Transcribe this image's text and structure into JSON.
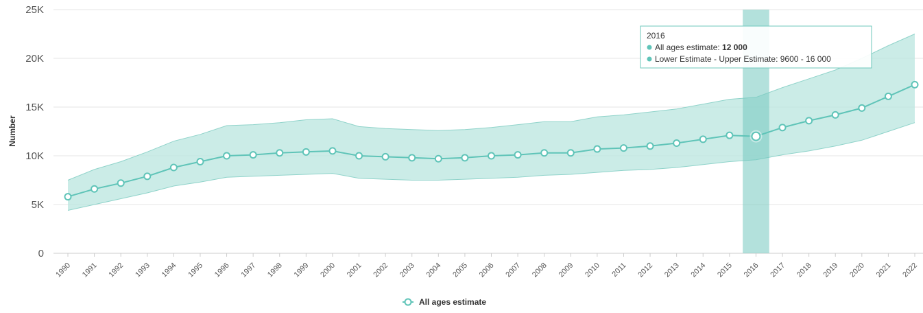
{
  "chart_data": {
    "type": "line",
    "ylabel": "Number",
    "ylim": [
      0,
      25000
    ],
    "y_ticks": [
      {
        "value": 0,
        "label": "0"
      },
      {
        "value": 5000,
        "label": "5K"
      },
      {
        "value": 10000,
        "label": "10K"
      },
      {
        "value": 15000,
        "label": "15K"
      },
      {
        "value": 20000,
        "label": "20K"
      },
      {
        "value": 25000,
        "label": "25K"
      }
    ],
    "categories": [
      "1990",
      "1991",
      "1992",
      "1993",
      "1994",
      "1995",
      "1996",
      "1997",
      "1998",
      "1999",
      "2000",
      "2001",
      "2002",
      "2003",
      "2004",
      "2005",
      "2006",
      "2007",
      "2008",
      "2009",
      "2010",
      "2011",
      "2012",
      "2013",
      "2014",
      "2015",
      "2016",
      "2017",
      "2018",
      "2019",
      "2020",
      "2021",
      "2022"
    ],
    "series": [
      {
        "name": "All ages estimate",
        "type": "line",
        "values": [
          5800,
          6600,
          7200,
          7900,
          8800,
          9400,
          10000,
          10100,
          10300,
          10400,
          10500,
          10000,
          9900,
          9800,
          9700,
          9800,
          10000,
          10100,
          10300,
          10300,
          10700,
          10800,
          11000,
          11300,
          11700,
          12100,
          12000,
          12900,
          13600,
          14200,
          14900,
          16100,
          17300
        ]
      },
      {
        "name": "Lower Estimate - Upper Estimate",
        "type": "arearange",
        "low": [
          4400,
          5000,
          5600,
          6200,
          6900,
          7300,
          7800,
          7900,
          8000,
          8100,
          8200,
          7700,
          7600,
          7500,
          7500,
          7600,
          7700,
          7800,
          8000,
          8100,
          8300,
          8500,
          8600,
          8800,
          9100,
          9400,
          9600,
          10100,
          10500,
          11000,
          11600,
          12500,
          13400
        ],
        "high": [
          7500,
          8600,
          9400,
          10400,
          11500,
          12200,
          13100,
          13200,
          13400,
          13700,
          13800,
          13000,
          12800,
          12700,
          12600,
          12700,
          12900,
          13200,
          13500,
          13500,
          14000,
          14200,
          14500,
          14800,
          15300,
          15800,
          16000,
          17000,
          17900,
          18800,
          20000,
          21300,
          22500
        ]
      }
    ],
    "highlight_category": "2016",
    "tooltip": {
      "title": "2016",
      "lines": [
        {
          "label": "All ages estimate: ",
          "value": "12 000"
        },
        {
          "label": "Lower Estimate - Upper Estimate: ",
          "value": "9600 - 16 000"
        }
      ]
    },
    "legend": {
      "position": "bottom-center",
      "label": "All ages estimate"
    },
    "colors": {
      "line": "#5fc4b8",
      "band": "#b9e5df",
      "band_stroke": "#8fd3ca",
      "highlight_band": "#74c9bf",
      "gridline": "#e6e6e6",
      "tooltip_border": "#6cc7bb"
    },
    "grid": true
  }
}
